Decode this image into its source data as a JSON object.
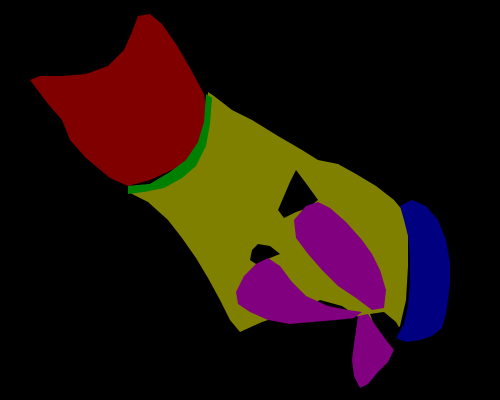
{
  "segmentation_map": {
    "background_color": "#000000",
    "regions": [
      {
        "name": "body",
        "color": "#808000"
      },
      {
        "name": "head",
        "color": "#800000"
      },
      {
        "name": "collar",
        "color": "#008000"
      },
      {
        "name": "leg-front",
        "color": "#800080"
      },
      {
        "name": "leg-hind",
        "color": "#800080"
      },
      {
        "name": "paw",
        "color": "#800080"
      },
      {
        "name": "tail",
        "color": "#000080"
      }
    ]
  }
}
